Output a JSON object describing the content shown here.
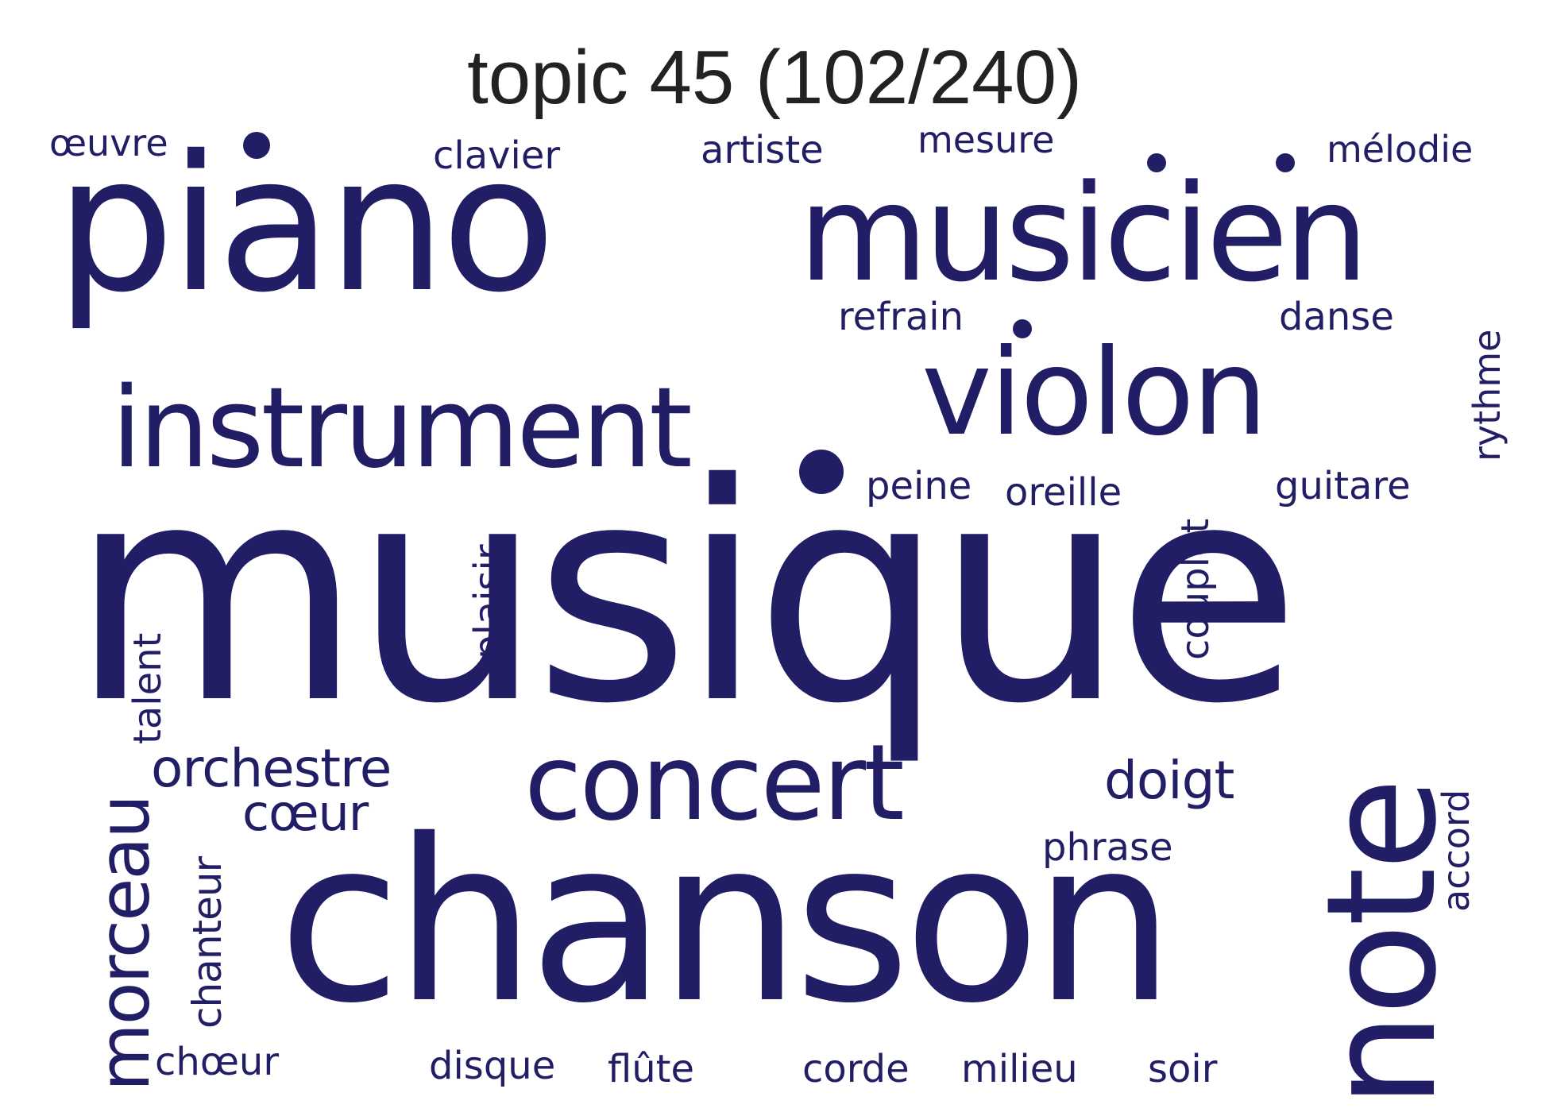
{
  "title": "topic 45 (102/240)",
  "color": "#221E66",
  "words": [
    {
      "text": "musique",
      "weight": 1.0
    },
    {
      "text": "chanson",
      "weight": 0.74
    },
    {
      "text": "piano",
      "weight": 0.62
    },
    {
      "text": "note",
      "weight": 0.5
    },
    {
      "text": "musicien",
      "weight": 0.44
    },
    {
      "text": "violon",
      "weight": 0.39
    },
    {
      "text": "instrument",
      "weight": 0.37
    },
    {
      "text": "concert",
      "weight": 0.34
    },
    {
      "text": "morceau",
      "weight": 0.23
    },
    {
      "text": "orchestre",
      "weight": 0.17
    },
    {
      "text": "doigt",
      "weight": 0.17
    },
    {
      "text": "cœur",
      "weight": 0.15
    },
    {
      "text": "chanteur",
      "weight": 0.13
    },
    {
      "text": "plaisir",
      "weight": 0.13
    },
    {
      "text": "couplet",
      "weight": 0.13
    },
    {
      "text": "talent",
      "weight": 0.12
    },
    {
      "text": "accord",
      "weight": 0.12
    },
    {
      "text": "rythme",
      "weight": 0.12
    },
    {
      "text": "refrain",
      "weight": 0.11
    },
    {
      "text": "danse",
      "weight": 0.11
    },
    {
      "text": "guitare",
      "weight": 0.11
    },
    {
      "text": "peine",
      "weight": 0.11
    },
    {
      "text": "oreille",
      "weight": 0.11
    },
    {
      "text": "phrase",
      "weight": 0.11
    },
    {
      "text": "chœur",
      "weight": 0.11
    },
    {
      "text": "disque",
      "weight": 0.11
    },
    {
      "text": "flûte",
      "weight": 0.11
    },
    {
      "text": "corde",
      "weight": 0.11
    },
    {
      "text": "milieu",
      "weight": 0.11
    },
    {
      "text": "soir",
      "weight": 0.11
    },
    {
      "text": "œuvre",
      "weight": 0.1
    },
    {
      "text": "clavier",
      "weight": 0.1
    },
    {
      "text": "artiste",
      "weight": 0.1
    },
    {
      "text": "mesure",
      "weight": 0.1
    },
    {
      "text": "mélodie",
      "weight": 0.1
    }
  ]
}
